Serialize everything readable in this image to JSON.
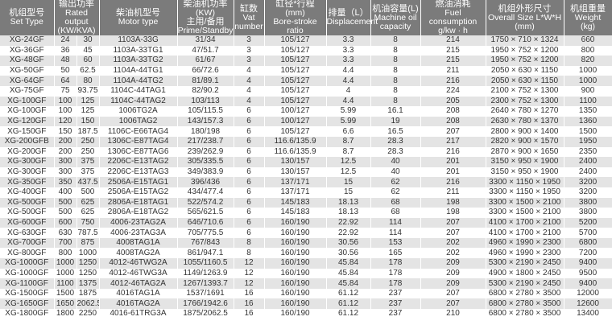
{
  "headers": [
    {
      "cn": "机组型号",
      "en": "Set Type"
    },
    {
      "cn": "输出功率",
      "en": "Rated output",
      "unit": "(KW/KVA)"
    },
    {
      "cn": "柴油机型号",
      "en": "Motor type"
    },
    {
      "cn": "柴油机功率",
      "unit": "(KW)",
      "cn2": "主用/备用",
      "en": "Prime/Standby"
    },
    {
      "cn": "缸数",
      "en": "Vat",
      "en2": "number"
    },
    {
      "cn": "缸径*行程",
      "unit": "(mm)",
      "en": "Bore-stroke ratio"
    },
    {
      "cn": "排量（L）",
      "en": "Displacement"
    },
    {
      "cn": "机油容量(L)",
      "en": "Machine oil",
      "en2": "capacity"
    },
    {
      "cn": "燃油消耗",
      "en": "Fuel consumption",
      "unit": "g/kw · h"
    },
    {
      "cn": "机组外形尺寸",
      "en": "Overall Size L*W*H",
      "unit": "(mm)"
    },
    {
      "cn": "机组重量",
      "en": "Weight",
      "unit": "(kg)"
    }
  ],
  "rows": [
    [
      "XG-24GF",
      "24",
      "30",
      "1103A-33G",
      "31/34",
      "3",
      "105/127",
      "3.3",
      "8",
      "214",
      "1750 × 710 × 1324",
      "660"
    ],
    [
      "XG-36GF",
      "36",
      "45",
      "1103A-33TG1",
      "47/51.7",
      "3",
      "105/127",
      "3.3",
      "8",
      "215",
      "1950 × 752 × 1200",
      "800"
    ],
    [
      "XG-48GF",
      "48",
      "60",
      "1103A-33TG2",
      "61/67",
      "3",
      "105/127",
      "3.3",
      "8",
      "215",
      "1950 × 752 × 1200",
      "820"
    ],
    [
      "XG-50GF",
      "50",
      "62.5",
      "1104A-44TG1",
      "66/72.6",
      "4",
      "105/127",
      "4.4",
      "8",
      "211",
      "2050 × 630 × 1150",
      "1000"
    ],
    [
      "XG-64GF",
      "64",
      "80",
      "1104A-44TG2",
      "81/89.1",
      "4",
      "105/127",
      "4.4",
      "8",
      "216",
      "2050 × 630 × 1150",
      "1000"
    ],
    [
      "XG-75GF",
      "75",
      "93.75",
      "1104C-44TAG1",
      "82/90.2",
      "4",
      "105/127",
      "4",
      "8",
      "224",
      "2100 × 752 × 1300",
      "900"
    ],
    [
      "XG-100GF",
      "100",
      "125",
      "1104C-44TAG2",
      "103/113",
      "4",
      "105/127",
      "4.4",
      "8",
      "205",
      "2300 × 752 × 1300",
      "1100"
    ],
    [
      "XG-100GF",
      "100",
      "125",
      "1006TG2A",
      "105/115.5",
      "6",
      "100/127",
      "5.99",
      "16.1",
      "208",
      "2640 × 780 × 1270",
      "1350"
    ],
    [
      "XG-120GF",
      "120",
      "150",
      "1006TAG2",
      "143/157.3",
      "6",
      "100/127",
      "5.99",
      "19",
      "208",
      "2630 × 780 × 1370",
      "1360"
    ],
    [
      "XG-150GF",
      "150",
      "187.5",
      "1106C-E66TAG4",
      "180/198",
      "6",
      "105/127",
      "6.6",
      "16.5",
      "207",
      "2800 × 900 × 1400",
      "1500"
    ],
    [
      "XG-200GFB",
      "200",
      "250",
      "1306C-E87TAG4",
      "217/238.7",
      "6",
      "116.6/135.9",
      "8.7",
      "28.3",
      "217",
      "2820 × 900 × 1570",
      "1950"
    ],
    [
      "XG-200GF",
      "200",
      "250",
      "1306C-E87TAG6",
      "239/262.9",
      "6",
      "116.6/135.9",
      "8.7",
      "28.3",
      "216",
      "2870 × 900 × 1650",
      "2350"
    ],
    [
      "XG-300GF",
      "300",
      "375",
      "2206C-E13TAG2",
      "305/335.5",
      "6",
      "130/157",
      "12.5",
      "40",
      "201",
      "3150 × 950 × 1900",
      "2400"
    ],
    [
      "XG-300GF",
      "300",
      "375",
      "2206C-E13TAG3",
      "349/383.9",
      "6",
      "130/157",
      "12.5",
      "40",
      "201",
      "3150 × 950 × 1900",
      "2400"
    ],
    [
      "XG-350GF",
      "350",
      "437.5",
      "2506A-E15TAG1",
      "396/436",
      "6",
      "137/171",
      "15",
      "62",
      "216",
      "3300 × 1150 × 1950",
      "3200"
    ],
    [
      "XG-400GF",
      "400",
      "500",
      "2506A-E15TAG2",
      "434/477.4",
      "6",
      "137/171",
      "15",
      "62",
      "211",
      "3300 × 1150 × 1950",
      "3200"
    ],
    [
      "XG-500GF",
      "500",
      "625",
      "2806A-E18TAG1",
      "522/574.2",
      "6",
      "145/183",
      "18.13",
      "68",
      "198",
      "3300 × 1500 × 2100",
      "3800"
    ],
    [
      "XG-500GF",
      "500",
      "625",
      "2806A-E18TAG2",
      "565/621.5",
      "6",
      "145/183",
      "18.13",
      "68",
      "198",
      "3300 × 1500 × 2100",
      "3800"
    ],
    [
      "XG-600GF",
      "600",
      "750",
      "4006-23TAG2A",
      "646/710.6",
      "6",
      "160/190",
      "22.92",
      "114",
      "207",
      "4100 × 1700 × 2100",
      "5200"
    ],
    [
      "XG-630GF",
      "630",
      "787.5",
      "4006-23TAG3A",
      "705/775.5",
      "6",
      "160/190",
      "22.92",
      "114",
      "207",
      "4100 × 1700 × 2100",
      "5700"
    ],
    [
      "XG-700GF",
      "700",
      "875",
      "4008TAG1A",
      "767/843",
      "8",
      "160/190",
      "30.56",
      "153",
      "202",
      "4960 × 1990 × 2300",
      "6800"
    ],
    [
      "XG-800GF",
      "800",
      "1000",
      "4008TAG2A",
      "861/947.1",
      "8",
      "160/190",
      "30.56",
      "165",
      "202",
      "4960 × 1990 × 2300",
      "7200"
    ],
    [
      "XG-1000GF",
      "1000",
      "1250",
      "4012-46TWG2A",
      "1055/1160.5",
      "12",
      "160/190",
      "45.84",
      "178",
      "209",
      "5300 × 2190 × 2450",
      "9400"
    ],
    [
      "XG-1000GF",
      "1000",
      "1250",
      "4012-46TWG3A",
      "1149/1263.9",
      "12",
      "160/190",
      "45.84",
      "178",
      "209",
      "4900 × 1800 × 2450",
      "9500"
    ],
    [
      "XG-1100GF",
      "1100",
      "1375",
      "4012-46TAG2A",
      "1267/1393.7",
      "12",
      "160/190",
      "45.84",
      "178",
      "209",
      "5300 × 2190 × 2450",
      "9400"
    ],
    [
      "XG-1500GF",
      "1500",
      "1875",
      "4016TAG1A",
      "1537/1691",
      "16",
      "160/190",
      "61.12",
      "237",
      "207",
      "6800 × 2780 × 3500",
      "12000"
    ],
    [
      "XG-1650GF",
      "1650",
      "2062.5",
      "4016TAG2A",
      "1766/1942.6",
      "16",
      "160/190",
      "61.12",
      "237",
      "207",
      "6800 × 2780 × 3500",
      "12600"
    ],
    [
      "XG-1800GF",
      "1800",
      "2250",
      "4016-61TRG3A",
      "1875/2062.5",
      "16",
      "160/190",
      "61.12",
      "237",
      "210",
      "6800 × 2780 × 3500",
      "13400"
    ]
  ]
}
